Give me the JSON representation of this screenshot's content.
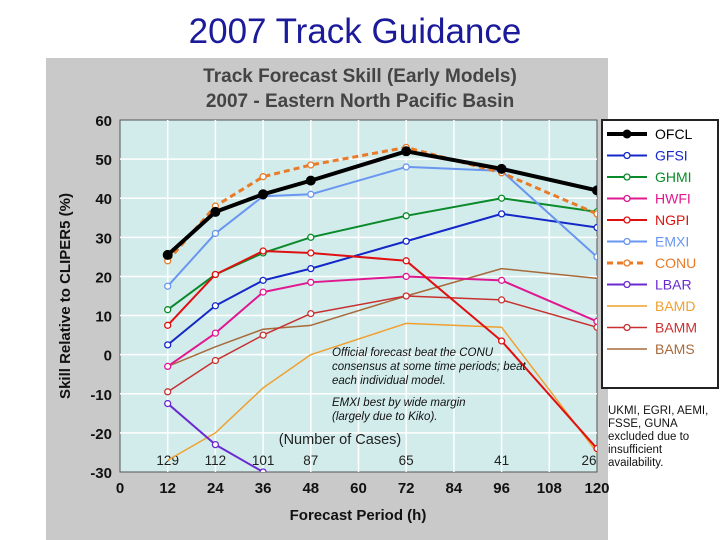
{
  "slide": {
    "title": "2007 Track Guidance"
  },
  "colors": {
    "panel": "#c9c9c9",
    "plot_bg": "#d2ecec",
    "grid": "#ffffff",
    "title_blue": "#1a1a9a"
  },
  "notes": {
    "conu": "Official forecast beat the CONU consensus at some time periods; beat each individual model.",
    "emxi": "EMXI best by wide margin (largely due to Kiko).",
    "excluded": "UKMI, EGRI, AEMI, FSSE, GUNA excluded due to insufficient availability."
  },
  "chart_data": {
    "type": "line",
    "title": "Track Forecast Skill (Early Models)",
    "subtitle": "2007 - Eastern North Pacific Basin",
    "xlabel": "Forecast Period (h)",
    "ylabel": "Skill Relative to CLIPER5 (%)",
    "xlim": [
      0,
      120
    ],
    "ylim": [
      -30,
      60
    ],
    "x_ticks": [
      0,
      12,
      24,
      36,
      48,
      60,
      72,
      84,
      96,
      108,
      120
    ],
    "y_ticks": [
      -30,
      -20,
      -10,
      0,
      10,
      20,
      30,
      40,
      50,
      60
    ],
    "grid": true,
    "legend_position": "right",
    "cases_label": "(Number of Cases)",
    "cases": [
      {
        "x": 12,
        "n": "129"
      },
      {
        "x": 24,
        "n": "112"
      },
      {
        "x": 36,
        "n": "101"
      },
      {
        "x": 48,
        "n": "87"
      },
      {
        "x": 72,
        "n": "65"
      },
      {
        "x": 96,
        "n": "41"
      },
      {
        "x": 120,
        "n": "26"
      }
    ],
    "x": [
      12,
      24,
      36,
      48,
      72,
      96,
      120
    ],
    "series": [
      {
        "name": "OFCL",
        "color": "#000000",
        "dash": "",
        "width": 4,
        "marker": "filled",
        "values": [
          25.5,
          36.5,
          41,
          44.5,
          52,
          47.5,
          42
        ]
      },
      {
        "name": "GFSI",
        "color": "#1428c8",
        "dash": "",
        "width": 2,
        "marker": "open",
        "values": [
          2.5,
          12.5,
          19,
          22,
          29,
          36,
          32.5
        ]
      },
      {
        "name": "GHMI",
        "color": "#0a8a2a",
        "dash": "",
        "width": 2,
        "marker": "open",
        "values": [
          11.5,
          20.5,
          26,
          30,
          35.5,
          40,
          36.5
        ]
      },
      {
        "name": "HWFI",
        "color": "#e01890",
        "dash": "",
        "width": 2,
        "marker": "open",
        "values": [
          -3,
          5.5,
          16,
          18.5,
          20,
          19,
          8.5
        ]
      },
      {
        "name": "NGPI",
        "color": "#e01010",
        "dash": "",
        "width": 2,
        "marker": "open",
        "values": [
          7.5,
          20.5,
          26.5,
          26,
          24,
          3.5,
          -24
        ]
      },
      {
        "name": "EMXI",
        "color": "#6a96f0",
        "dash": "",
        "width": 2,
        "marker": "open",
        "values": [
          17.5,
          31,
          40.5,
          41,
          48,
          47,
          25
        ]
      },
      {
        "name": "CONU",
        "color": "#e87a28",
        "dash": "6,4",
        "width": 3,
        "marker": "open",
        "values": [
          24,
          38,
          45.5,
          48.5,
          53,
          46.5,
          36
        ]
      },
      {
        "name": "LBAR",
        "color": "#6a2ad0",
        "dash": "",
        "width": 2,
        "marker": "open",
        "values": [
          -12.5,
          -23,
          -30,
          null,
          null,
          null,
          null
        ]
      },
      {
        "name": "BAMD",
        "color": "#f0a030",
        "dash": "",
        "width": 1.5,
        "marker": "none",
        "values": [
          -27,
          -20,
          -8.5,
          0,
          8,
          7,
          -25
        ]
      },
      {
        "name": "BAMM",
        "color": "#c83030",
        "dash": "",
        "width": 1.5,
        "marker": "open",
        "values": [
          -9.5,
          -1.5,
          5,
          10.5,
          15,
          14,
          7
        ]
      },
      {
        "name": "BAMS",
        "color": "#a86a3a",
        "dash": "",
        "width": 1.5,
        "marker": "none",
        "values": [
          -3,
          2,
          6.5,
          7.5,
          15,
          22,
          19.5
        ]
      }
    ]
  }
}
